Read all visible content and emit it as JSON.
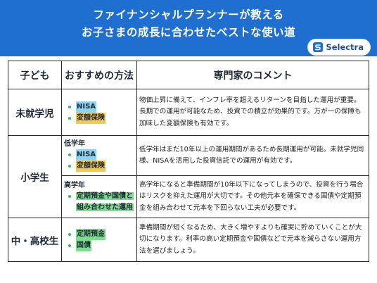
{
  "header": {
    "title_line1": "ファイナンシャルプランナーが教える",
    "title_line2": "お子さまの成長に合わせたベストな使い道",
    "brand": "Selectra",
    "brand_icon": "selectra-s-icon",
    "bg_color": "#1f6fd1"
  },
  "table": {
    "headers": {
      "child": "子ども",
      "method": "おすすめの方法",
      "comment": "専門家のコメント"
    },
    "rows": [
      {
        "child": "未就学児",
        "methods": [
          {
            "label": "NISA",
            "highlight": "blue"
          },
          {
            "label": "変額保険",
            "highlight": "yellow"
          }
        ],
        "comment": "物価上昇に備えて、インフレ率を超えるリターンを目指した運用が重要。長期での運用が可能なため、投資での積立が効果的です。万が一の保障も加味した変額保険も有効です。"
      },
      {
        "child": "小学生",
        "sub": [
          {
            "grade": "低学年",
            "methods": [
              {
                "label": "NISA",
                "highlight": "blue"
              },
              {
                "label": "変額保険",
                "highlight": "yellow"
              }
            ],
            "comment": "低学年はまだ10年以上の運用期間があるため長期運用が可能。未就学児同様、NISAを活用した投資信託での運用が有効です。"
          },
          {
            "grade": "高学年",
            "methods": [
              {
                "label": "定期預金や国債と",
                "highlight": "green",
                "cont": "組み合わせた運用"
              }
            ],
            "comment": "高学年になると準備期間が10年以下になってしまうので、投資を行う場合はリスクを抑えた運用が大切です。その他元本を確保できる国債や定期預金を組み合わせて元本を下回らない工夫が必要です。"
          }
        ]
      },
      {
        "child": "中・高校生",
        "methods": [
          {
            "label": "定期預金",
            "highlight": "green"
          },
          {
            "label": "国債",
            "highlight": "green"
          }
        ],
        "comment": "準備期間が短くなるため、大きく増やすよりも確実に貯めていくことが大切になります。利率の高い定期預金や国債などで元本を減らさない運用方法を選びましょう。"
      }
    ]
  }
}
